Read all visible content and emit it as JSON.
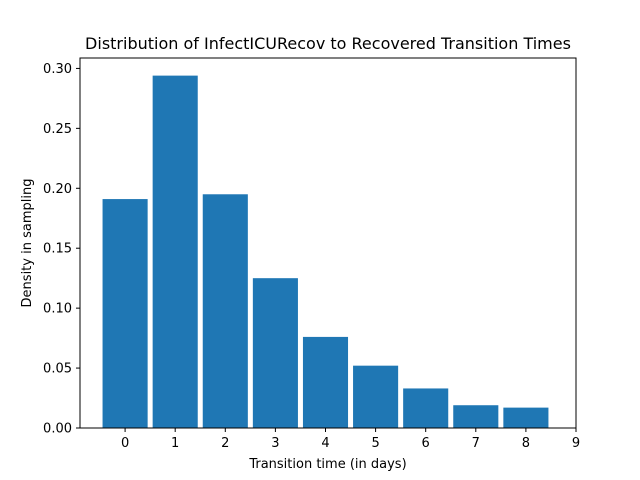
{
  "chart_data": {
    "type": "bar",
    "title": "Distribution of InfectICURecov to Recovered Transition Times",
    "xlabel": "Transition time (in days)",
    "ylabel": "Density in sampling",
    "x": [
      0,
      1,
      2,
      3,
      4,
      5,
      6,
      7,
      8
    ],
    "values": [
      0.191,
      0.294,
      0.195,
      0.125,
      0.076,
      0.052,
      0.033,
      0.019,
      0.017
    ],
    "xlim": [
      -0.9,
      9.0
    ],
    "ylim": [
      0,
      0.3087
    ],
    "x_ticks": [
      0,
      1,
      2,
      3,
      4,
      5,
      6,
      7,
      8,
      9
    ],
    "y_ticks": [
      0.0,
      0.05,
      0.1,
      0.15,
      0.2,
      0.25,
      0.3
    ],
    "y_tick_labels": [
      "0.00",
      "0.05",
      "0.10",
      "0.15",
      "0.20",
      "0.25",
      "0.30"
    ],
    "bar_color": "#1f77b4",
    "grid": false,
    "legend": "none"
  }
}
